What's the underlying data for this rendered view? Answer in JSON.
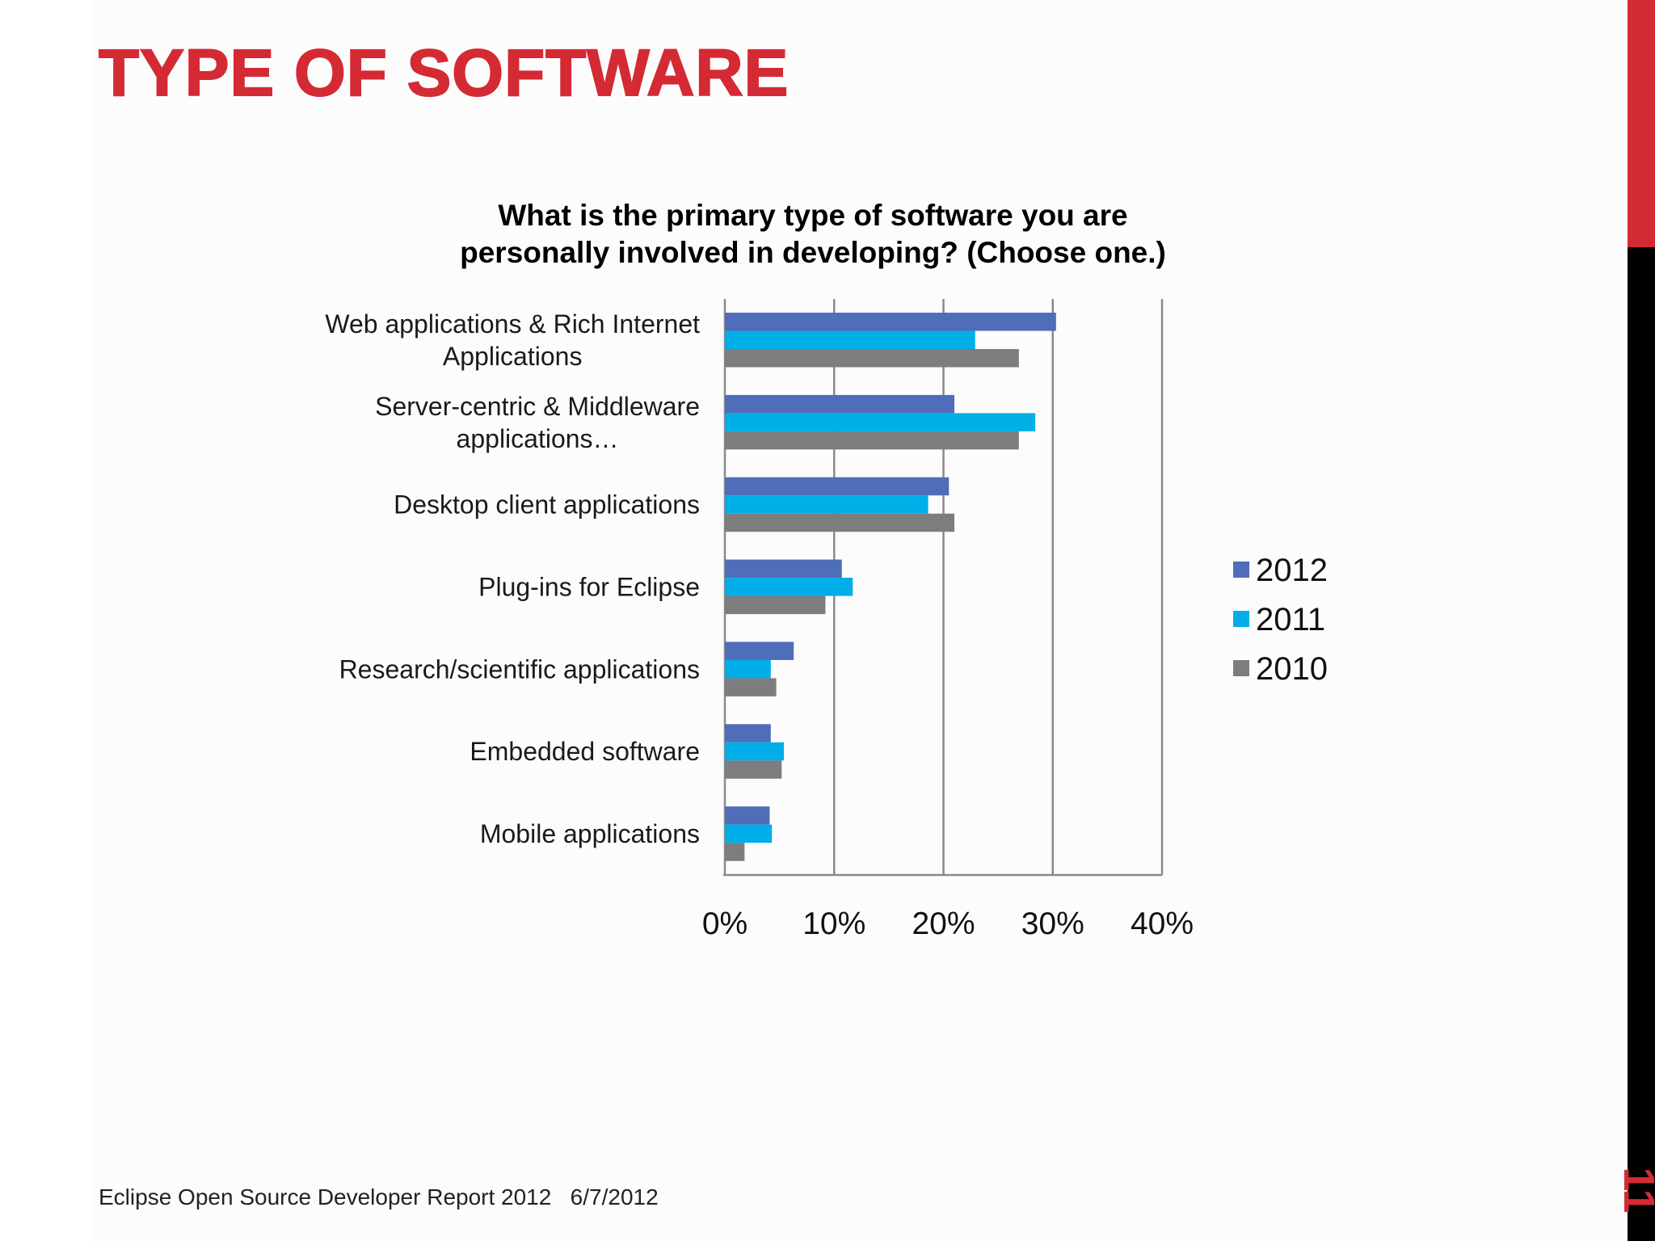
{
  "slide": {
    "title": "TYPE OF SOFTWARE",
    "footer": "Eclipse Open Source Developer Report 2012   6/7/2012",
    "page_number": "11",
    "accent_red": "#d42a34",
    "accent_black": "#000000"
  },
  "chart_data": {
    "type": "bar",
    "orientation": "horizontal",
    "title_lines": [
      "What is the primary type of software you are",
      "personally involved in developing? (Choose one.)"
    ],
    "categories": [
      [
        "Web applications & Rich Internet",
        "Applications"
      ],
      [
        "Server-centric & Middleware",
        "applications…"
      ],
      [
        "Desktop client applications"
      ],
      [
        "Plug-ins for Eclipse"
      ],
      [
        "Research/scientific applications"
      ],
      [
        "Embedded software"
      ],
      [
        "Mobile applications"
      ]
    ],
    "series": [
      {
        "name": "2012",
        "color": "#4f6db8",
        "values": [
          30.3,
          21.0,
          20.5,
          10.7,
          6.3,
          4.2,
          4.1
        ]
      },
      {
        "name": "2011",
        "color": "#00aee8",
        "values": [
          22.9,
          28.4,
          18.6,
          11.7,
          4.2,
          5.4,
          4.3
        ]
      },
      {
        "name": "2010",
        "color": "#7d7c7e",
        "values": [
          26.9,
          26.9,
          21.0,
          9.2,
          4.7,
          5.2,
          1.8
        ]
      }
    ],
    "xlim": [
      0,
      40
    ],
    "xticks": [
      "0%",
      "10%",
      "20%",
      "30%",
      "40%"
    ],
    "gridlines": true,
    "legend_position": "right"
  }
}
